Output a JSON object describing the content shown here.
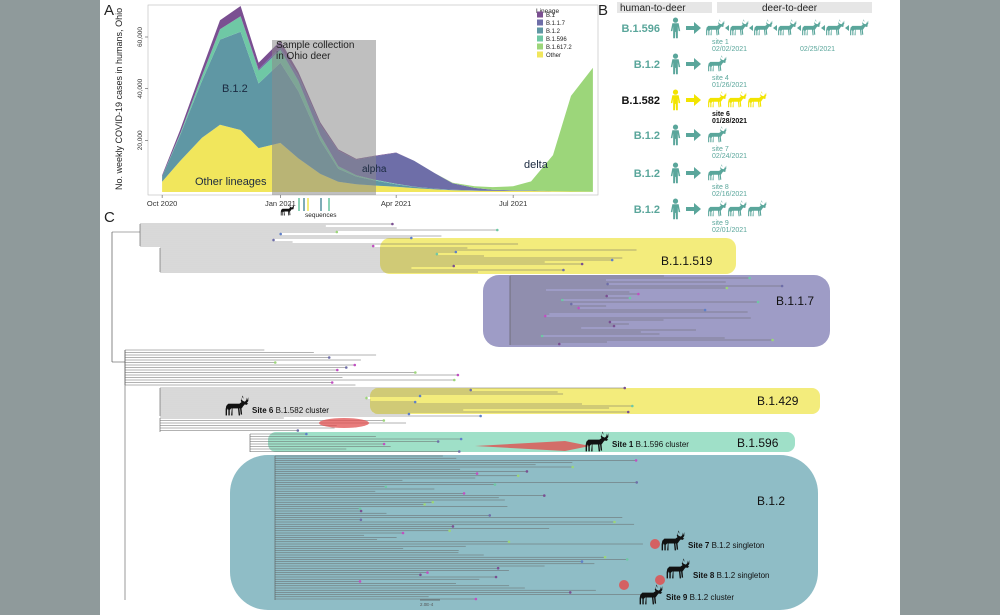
{
  "colors": {
    "page_bg": "#8f9a9b",
    "B.1": "#7a4f91",
    "B.1.1.7": "#6e6ea8",
    "B.1.2": "#5f97a4",
    "B.1.596": "#6fc8a5",
    "B.1.617.2": "#9cd67a",
    "Other": "#f1e65c",
    "human_deer_teal": "#5aa69b",
    "clade_yellow": "#f3ec7c",
    "clade_purple": "#9e9cc6",
    "clade_teal": "#8fbdc6",
    "clade_mint": "#9fe0c8",
    "cluster_red": "#e05050"
  },
  "panel_a": {
    "letter": "A",
    "legend_title": "Lineage",
    "legend_items": [
      "B.1",
      "B.1.1.7",
      "B.1.2",
      "B.1.596",
      "B.1.617.2",
      "Other"
    ],
    "sample_collection_label": "Sample collection in Ohio deer",
    "sequences_label": "sequences",
    "annotations": {
      "b12": "B.1.2",
      "alpha": "alpha",
      "delta": "delta",
      "other": "Other lineages"
    }
  },
  "chart_data": {
    "type": "area",
    "stacked": true,
    "title": "",
    "ylabel": "No. weekly COVID-19 cases in humans, Ohio",
    "xlabel": "",
    "x_tick_labels": [
      "Oct 2020",
      "Jan 2021",
      "Apr 2021",
      "Jul 2021"
    ],
    "y_tick_labels": [
      "20,000",
      "40,000",
      "60,000"
    ],
    "ylim": [
      0,
      72000
    ],
    "grid": false,
    "legend_placement": "top-right",
    "x": [
      "2020-10-01",
      "2020-10-15",
      "2020-11-01",
      "2020-11-15",
      "2020-12-01",
      "2020-12-15",
      "2021-01-01",
      "2021-01-15",
      "2021-02-01",
      "2021-02-15",
      "2021-03-01",
      "2021-03-15",
      "2021-04-01",
      "2021-04-15",
      "2021-05-01",
      "2021-05-15",
      "2021-06-01",
      "2021-06-15",
      "2021-07-01",
      "2021-07-15",
      "2021-08-01",
      "2021-08-15",
      "2021-09-01"
    ],
    "series": [
      {
        "name": "Other",
        "values": [
          4000,
          12000,
          21000,
          26000,
          24000,
          17000,
          19000,
          13000,
          7000,
          4000,
          3000,
          2500,
          2000,
          1500,
          1000,
          700,
          500,
          400,
          400,
          400,
          300,
          200,
          100
        ]
      },
      {
        "name": "B.1.2",
        "values": [
          2000,
          10000,
          22000,
          33000,
          38000,
          25000,
          31000,
          26000,
          13000,
          5000,
          3000,
          2000,
          1000,
          500,
          300,
          200,
          100,
          100,
          100,
          100,
          0,
          0,
          0
        ]
      },
      {
        "name": "B.1.596",
        "values": [
          0,
          500,
          2000,
          4000,
          6000,
          5000,
          5000,
          4000,
          2000,
          1000,
          500,
          300,
          200,
          100,
          0,
          0,
          0,
          0,
          0,
          0,
          0,
          0,
          0
        ]
      },
      {
        "name": "B.1.1.7",
        "values": [
          0,
          0,
          0,
          0,
          0,
          500,
          1000,
          2000,
          4000,
          6000,
          6000,
          9000,
          12000,
          10000,
          6000,
          2500,
          1000,
          400,
          200,
          100,
          0,
          0,
          0
        ]
      },
      {
        "name": "B.1",
        "values": [
          500,
          1500,
          2500,
          3500,
          4000,
          2500,
          2500,
          1500,
          1000,
          500,
          300,
          200,
          100,
          0,
          0,
          0,
          0,
          0,
          0,
          0,
          0,
          0,
          0
        ]
      },
      {
        "name": "B.1.617.2",
        "values": [
          0,
          0,
          0,
          0,
          0,
          0,
          0,
          0,
          0,
          0,
          0,
          0,
          0,
          0,
          0,
          200,
          600,
          1000,
          1500,
          3500,
          14000,
          37000,
          48000
        ]
      }
    ]
  },
  "panel_b": {
    "letter": "B",
    "header_human": "human-to-deer",
    "header_deer": "deer-to-deer",
    "rows": [
      {
        "lineage": "B.1.596",
        "site": "site 1",
        "dates": [
          "02/02/2021",
          "02/25/2021"
        ],
        "bold": false
      },
      {
        "lineage": "B.1.2",
        "site": "site 4",
        "dates": [
          "01/26/2021"
        ],
        "bold": false
      },
      {
        "lineage": "B.1.582",
        "site": "site 6",
        "dates": [
          "01/28/2021"
        ],
        "bold": true
      },
      {
        "lineage": "B.1.2",
        "site": "site 7",
        "dates": [
          "02/24/2021"
        ],
        "bold": false
      },
      {
        "lineage": "B.1.2",
        "site": "site 8",
        "dates": [
          "02/16/2021"
        ],
        "bold": false
      },
      {
        "lineage": "B.1.2",
        "site": "site 9",
        "dates": [
          "02/01/2021"
        ],
        "bold": false
      }
    ]
  },
  "panel_c": {
    "letter": "C",
    "clades": [
      "B.1.1.519",
      "B.1.1.7",
      "B.1.429",
      "B.1.596",
      "B.1.2"
    ],
    "site_labels": [
      {
        "bold": "Site 6",
        "rest": "B.1.582 cluster"
      },
      {
        "bold": "Site 1",
        "rest": "B.1.596 cluster"
      },
      {
        "bold": "Site 7",
        "rest": "B.1.2 singleton"
      },
      {
        "bold": "Site 8",
        "rest": "B.1.2 singleton"
      },
      {
        "bold": "Site 9",
        "rest": "B.1.2 cluster"
      }
    ],
    "scale_label": "2.0E-4"
  }
}
